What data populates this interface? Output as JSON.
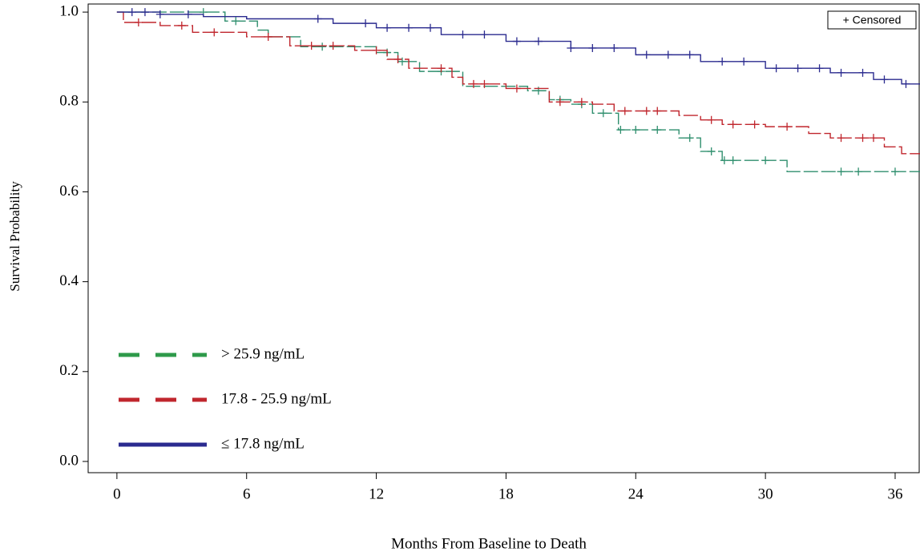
{
  "chart_data": {
    "type": "step",
    "x_label": "Months From Baseline to Death",
    "y_label": "Survival Probability",
    "censored_label": "+ Censored",
    "xlim": [
      -1.33,
      37.15
    ],
    "ylim": [
      -0.025,
      1.018
    ],
    "xticks": [
      0,
      6,
      12,
      18,
      24,
      30,
      36
    ],
    "yticks": [
      {
        "value": 0,
        "label": "0.0"
      },
      {
        "value": 0.2,
        "label": "0.2"
      },
      {
        "value": 0.4,
        "label": "0.4"
      },
      {
        "value": 0.6,
        "label": "0.6"
      },
      {
        "value": 0.8,
        "label": "0.8"
      },
      {
        "value": 1,
        "label": "1.0"
      }
    ],
    "legend": "lower left",
    "series": [
      {
        "name": "> 25.9 ng/mL",
        "color": "#2f8f6e",
        "legend_color": "#2e9a4a",
        "dash": true,
        "x": [
          0,
          5,
          6.5,
          7,
          8.5,
          12,
          13,
          14,
          16,
          19,
          20,
          21,
          22,
          23.2,
          26,
          27,
          28,
          31,
          37.15
        ],
        "values": [
          1.0,
          0.98,
          0.96,
          0.945,
          0.923,
          0.91,
          0.89,
          0.868,
          0.835,
          0.825,
          0.805,
          0.795,
          0.775,
          0.738,
          0.72,
          0.69,
          0.67,
          0.645,
          0.645
        ],
        "censored": [
          4,
          5.5,
          9.5,
          12.5,
          13.2,
          15,
          19.5,
          20.5,
          21.5,
          22.5,
          23.3,
          24,
          25,
          26.5,
          27.5,
          28.1,
          28.5,
          30,
          33.5,
          34.3,
          36
        ]
      },
      {
        "name": "17.8 - 25.9 ng/mL",
        "color": "#c0262d",
        "legend_color": "#c0262d",
        "dash": true,
        "x": [
          0,
          0.3,
          2,
          3.5,
          6,
          8,
          11,
          12.5,
          13.5,
          15.5,
          16,
          18,
          20,
          22,
          23,
          26,
          27,
          28,
          30,
          32,
          33,
          35.5,
          36.3,
          37.15
        ],
        "values": [
          1.0,
          0.977,
          0.97,
          0.955,
          0.945,
          0.925,
          0.915,
          0.895,
          0.875,
          0.855,
          0.84,
          0.83,
          0.8,
          0.795,
          0.78,
          0.77,
          0.76,
          0.75,
          0.745,
          0.73,
          0.72,
          0.7,
          0.685,
          0.685
        ],
        "censored": [
          1,
          3,
          4.5,
          7,
          9,
          10,
          12,
          13,
          15,
          16.5,
          17,
          18.5,
          20.5,
          21.5,
          23.5,
          24.5,
          25,
          27.5,
          28.5,
          29.5,
          31,
          33.5,
          34.5,
          35
        ]
      },
      {
        "name": "≤ 17.8 ng/mL",
        "color": "#2b2b8f",
        "legend_color": "#2b2b8f",
        "dash": false,
        "x": [
          0,
          2,
          4,
          6,
          10,
          12,
          15,
          18,
          21,
          24,
          27,
          30,
          33,
          35,
          36.3,
          37.15
        ],
        "values": [
          1.0,
          0.995,
          0.99,
          0.985,
          0.975,
          0.965,
          0.95,
          0.935,
          0.92,
          0.905,
          0.89,
          0.875,
          0.865,
          0.85,
          0.84,
          0.84
        ],
        "censored": [
          0.7,
          1.3,
          2,
          3.3,
          9.3,
          11.5,
          12.5,
          13.5,
          14.5,
          16,
          17,
          18.5,
          19.5,
          21,
          22,
          23,
          24.5,
          25.5,
          26.5,
          28,
          29,
          30.5,
          31.5,
          32.5,
          33.5,
          34.5,
          35.5,
          36.5
        ]
      }
    ]
  }
}
